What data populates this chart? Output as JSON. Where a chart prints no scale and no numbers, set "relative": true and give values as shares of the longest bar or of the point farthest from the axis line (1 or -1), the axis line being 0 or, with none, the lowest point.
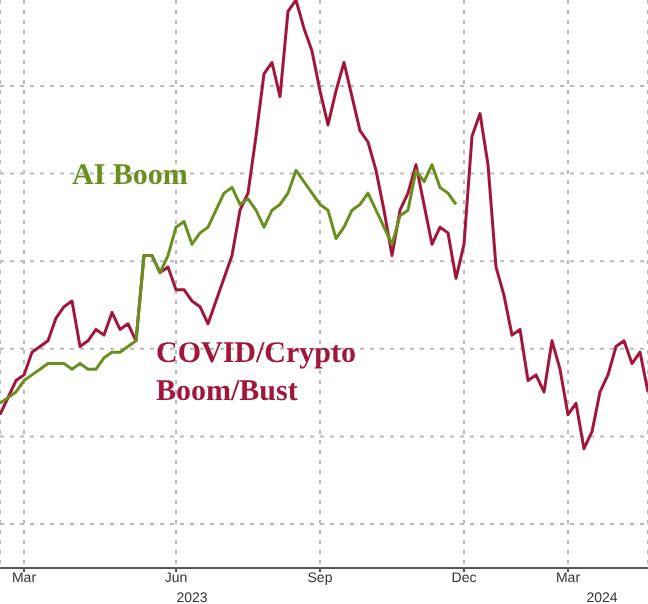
{
  "chart_data": {
    "type": "line",
    "relative": true,
    "grid": true,
    "line_style": "solid",
    "marker": "none",
    "categories": [
      null,
      null,
      null,
      "Mar",
      null,
      null,
      null,
      null,
      null,
      null,
      null,
      null,
      null,
      null,
      null,
      null,
      null,
      null,
      null,
      null,
      null,
      null,
      "Jun",
      null,
      null,
      null,
      null,
      null,
      null,
      null,
      null,
      null,
      null,
      null,
      null,
      null,
      null,
      null,
      null,
      null,
      "Sep",
      null,
      null,
      null,
      null,
      null,
      null,
      null,
      null,
      null,
      null,
      null,
      null,
      null,
      null,
      null,
      null,
      null,
      "Dec",
      null,
      null,
      null,
      null,
      null,
      null,
      null,
      null,
      null,
      null,
      null,
      null,
      "Mar",
      null,
      null,
      null,
      null,
      null,
      null,
      null,
      null,
      null,
      null
    ],
    "annotations": [
      "2023",
      "2024"
    ],
    "series": [
      {
        "name": "COVID/Crypto Boom/Bust",
        "color": "#a3163c",
        "values": [
          0.27,
          0.3,
          0.33,
          0.34,
          0.38,
          0.39,
          0.4,
          0.44,
          0.46,
          0.47,
          0.39,
          0.4,
          0.42,
          0.41,
          0.45,
          0.42,
          0.43,
          0.4,
          0.55,
          0.55,
          0.52,
          0.53,
          0.49,
          0.49,
          0.47,
          0.46,
          0.43,
          0.47,
          0.51,
          0.55,
          0.63,
          0.66,
          0.76,
          0.87,
          0.89,
          0.83,
          0.98,
          1,
          0.95,
          0.91,
          0.84,
          0.78,
          0.84,
          0.89,
          0.83,
          0.77,
          0.75,
          0.7,
          0.63,
          0.55,
          0.63,
          0.66,
          0.71,
          0.64,
          0.57,
          0.6,
          0.59,
          0.51,
          0.57,
          0.76,
          0.8,
          0.71,
          0.53,
          0.48,
          0.41,
          0.42,
          0.33,
          0.34,
          0.31,
          0.4,
          0.35,
          0.27,
          0.29,
          0.21,
          0.24,
          0.31,
          0.34,
          0.39,
          0.4,
          0.36,
          0.38,
          0.31
        ]
      },
      {
        "name": "AI Boom",
        "color": "#6a8f1f",
        "values": [
          0.29,
          0.3,
          0.31,
          0.33,
          0.34,
          0.35,
          0.36,
          0.36,
          0.36,
          0.35,
          0.36,
          0.35,
          0.35,
          0.37,
          0.38,
          0.38,
          0.39,
          0.4,
          0.55,
          0.55,
          0.52,
          0.55,
          0.6,
          0.61,
          0.57,
          0.59,
          0.6,
          0.63,
          0.66,
          0.67,
          0.64,
          0.65,
          0.63,
          0.6,
          0.63,
          0.64,
          0.66,
          0.7,
          0.68,
          0.66,
          0.64,
          0.63,
          0.58,
          0.6,
          0.63,
          0.64,
          0.66,
          0.63,
          0.6,
          0.57,
          0.62,
          0.63,
          0.7,
          0.68,
          0.71,
          0.67,
          0.66,
          0.64,
          null,
          null,
          null,
          null,
          null,
          null,
          null,
          null,
          null,
          null,
          null,
          null,
          null,
          null,
          null,
          null,
          null,
          null,
          null,
          null,
          null,
          null,
          null,
          null
        ]
      }
    ]
  }
}
